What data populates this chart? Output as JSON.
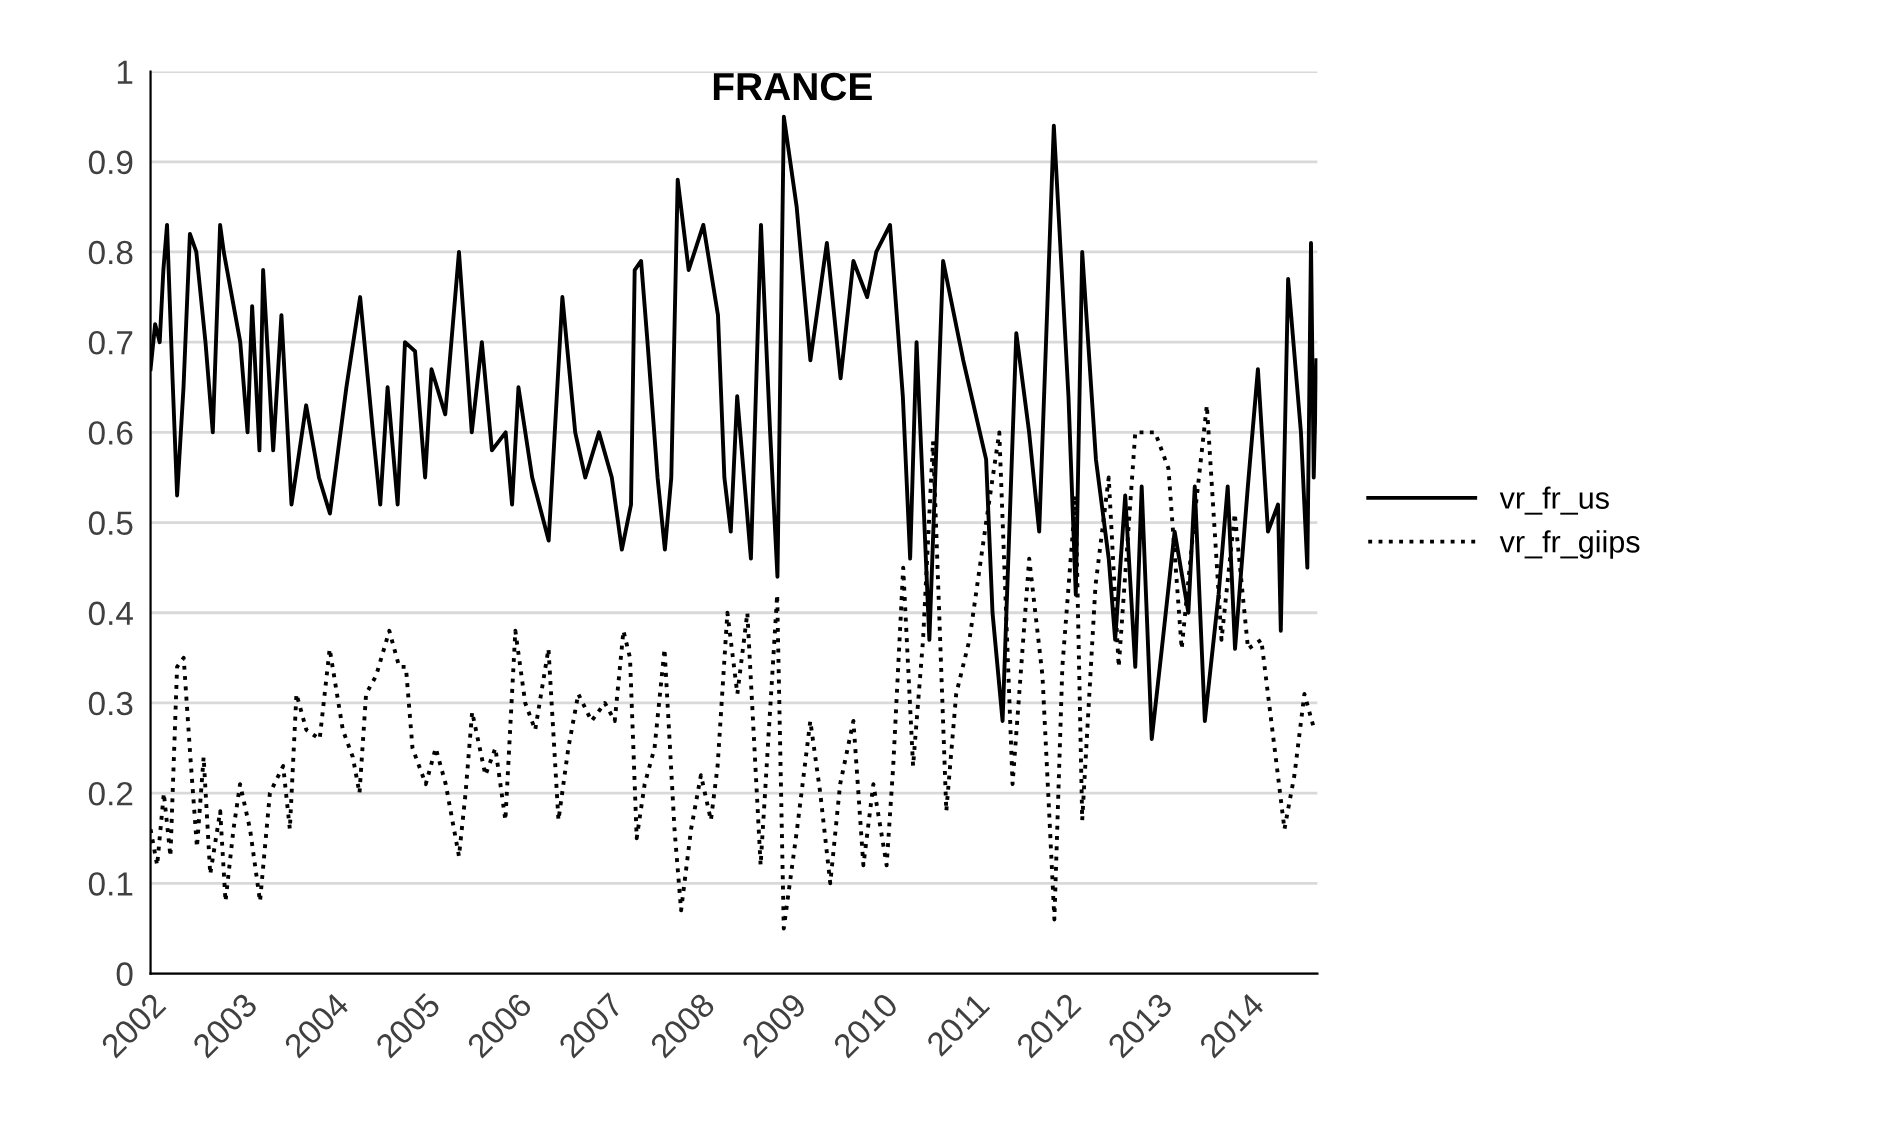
{
  "chart_data": {
    "type": "line",
    "title": "FRANCE",
    "xlim": [
      2002,
      2014.75
    ],
    "xticks": [
      2002,
      2003,
      2004,
      2005,
      2006,
      2007,
      2008,
      2009,
      2010,
      2011,
      2012,
      2013,
      2014
    ],
    "ylim": [
      0,
      1
    ],
    "yticks": [
      0,
      0.1,
      0.2,
      0.3,
      0.4,
      0.5,
      0.6,
      0.7,
      0.8,
      0.9,
      1
    ],
    "grid": "y",
    "legend": "right",
    "marker": "none",
    "series": [
      {
        "name": "vr_fr_us",
        "color": "#000000",
        "line_style": "solid",
        "x": [
          2002.0,
          2002.05,
          2002.1,
          2002.14,
          2002.18,
          2002.24,
          2002.29,
          2002.36,
          2002.43,
          2002.5,
          2002.6,
          2002.68,
          2002.76,
          2002.8,
          2002.98,
          2003.06,
          2003.11,
          2003.19,
          2003.23,
          2003.34,
          2003.43,
          2003.54,
          2003.7,
          2003.84,
          2003.96,
          2004.14,
          2004.29,
          2004.43,
          2004.51,
          2004.59,
          2004.7,
          2004.78,
          2004.89,
          2005.0,
          2005.07,
          2005.22,
          2005.37,
          2005.51,
          2005.62,
          2005.73,
          2005.88,
          2005.95,
          2006.02,
          2006.17,
          2006.35,
          2006.5,
          2006.64,
          2006.75,
          2006.9,
          2007.04,
          2007.15,
          2007.25,
          2007.29,
          2007.36,
          2007.43,
          2007.54,
          2007.62,
          2007.69,
          2007.76,
          2007.88,
          2008.04,
          2008.2,
          2008.27,
          2008.34,
          2008.41,
          2008.56,
          2008.67,
          2008.77,
          2008.85,
          2008.92,
          2009.06,
          2009.21,
          2009.39,
          2009.54,
          2009.68,
          2009.83,
          2009.93,
          2010.08,
          2010.22,
          2010.3,
          2010.37,
          2010.51,
          2010.66,
          2010.88,
          2011.13,
          2011.2,
          2011.31,
          2011.46,
          2011.6,
          2011.71,
          2011.87,
          2012.03,
          2012.11,
          2012.18,
          2012.33,
          2012.47,
          2012.54,
          2012.65,
          2012.76,
          2012.83,
          2012.94,
          2013.05,
          2013.19,
          2013.34,
          2013.41,
          2013.52,
          2013.67,
          2013.77,
          2013.85,
          2013.99,
          2014.1,
          2014.21,
          2014.32,
          2014.35,
          2014.43,
          2014.57,
          2014.64,
          2014.68,
          2014.71,
          2014.74
        ],
        "values": [
          0.67,
          0.72,
          0.7,
          0.78,
          0.83,
          0.66,
          0.53,
          0.65,
          0.82,
          0.8,
          0.7,
          0.6,
          0.83,
          0.8,
          0.7,
          0.6,
          0.74,
          0.58,
          0.78,
          0.58,
          0.73,
          0.52,
          0.63,
          0.55,
          0.51,
          0.65,
          0.75,
          0.6,
          0.52,
          0.65,
          0.52,
          0.7,
          0.69,
          0.55,
          0.67,
          0.62,
          0.8,
          0.6,
          0.7,
          0.58,
          0.6,
          0.52,
          0.65,
          0.55,
          0.48,
          0.75,
          0.6,
          0.55,
          0.6,
          0.55,
          0.47,
          0.52,
          0.78,
          0.79,
          0.7,
          0.55,
          0.47,
          0.55,
          0.88,
          0.78,
          0.83,
          0.73,
          0.55,
          0.49,
          0.64,
          0.46,
          0.83,
          0.6,
          0.44,
          0.95,
          0.85,
          0.68,
          0.81,
          0.66,
          0.79,
          0.75,
          0.8,
          0.83,
          0.64,
          0.46,
          0.7,
          0.37,
          0.79,
          0.68,
          0.57,
          0.4,
          0.28,
          0.71,
          0.6,
          0.49,
          0.94,
          0.64,
          0.42,
          0.8,
          0.57,
          0.46,
          0.37,
          0.53,
          0.34,
          0.54,
          0.26,
          0.36,
          0.49,
          0.4,
          0.54,
          0.28,
          0.42,
          0.54,
          0.36,
          0.54,
          0.67,
          0.49,
          0.52,
          0.38,
          0.77,
          0.6,
          0.45,
          0.81,
          0.55,
          0.68
        ]
      },
      {
        "name": "vr_fr_giips",
        "color": "#000000",
        "line_style": "dotted",
        "x": [
          2002.0,
          2002.072,
          2002.145,
          2002.217,
          2002.29,
          2002.362,
          2002.435,
          2002.507,
          2002.58,
          2002.652,
          2002.761,
          2002.819,
          2002.906,
          2002.978,
          2003.087,
          2003.196,
          2003.304,
          2003.449,
          2003.522,
          2003.594,
          2003.703,
          2003.848,
          2003.957,
          2004.101,
          2004.21,
          2004.283,
          2004.355,
          2004.464,
          2004.609,
          2004.717,
          2004.79,
          2004.862,
          2005.007,
          2005.116,
          2005.225,
          2005.37,
          2005.442,
          2005.514,
          2005.659,
          2005.768,
          2005.877,
          2005.986,
          2006.094,
          2006.203,
          2006.348,
          2006.457,
          2006.565,
          2006.674,
          2006.819,
          2006.964,
          2007.072,
          2007.167,
          2007.239,
          2007.312,
          2007.399,
          2007.507,
          2007.616,
          2007.725,
          2007.797,
          2007.906,
          2008.014,
          2008.123,
          2008.196,
          2008.303,
          2008.412,
          2008.521,
          2008.666,
          2008.847,
          2008.919,
          2009.064,
          2009.209,
          2009.318,
          2009.427,
          2009.535,
          2009.68,
          2009.789,
          2009.898,
          2010.043,
          2010.115,
          2010.224,
          2010.332,
          2010.441,
          2010.55,
          2010.695,
          2010.803,
          2010.948,
          2011.13,
          2011.274,
          2011.419,
          2011.601,
          2011.746,
          2011.876,
          2011.963,
          2012.108,
          2012.18,
          2012.325,
          2012.47,
          2012.579,
          2012.76,
          2012.977,
          2013.122,
          2013.267,
          2013.412,
          2013.542,
          2013.702,
          2013.847,
          2013.992,
          2014.137,
          2014.282,
          2014.39,
          2014.499,
          2014.608,
          2014.717
        ],
        "values": [
          0.16,
          0.12,
          0.2,
          0.13,
          0.34,
          0.35,
          0.24,
          0.14,
          0.24,
          0.11,
          0.18,
          0.08,
          0.16,
          0.21,
          0.16,
          0.08,
          0.2,
          0.23,
          0.16,
          0.31,
          0.27,
          0.26,
          0.36,
          0.27,
          0.24,
          0.2,
          0.31,
          0.33,
          0.38,
          0.34,
          0.34,
          0.25,
          0.21,
          0.25,
          0.21,
          0.13,
          0.2,
          0.29,
          0.22,
          0.25,
          0.17,
          0.38,
          0.3,
          0.27,
          0.36,
          0.17,
          0.25,
          0.31,
          0.28,
          0.3,
          0.28,
          0.38,
          0.35,
          0.15,
          0.21,
          0.25,
          0.36,
          0.16,
          0.07,
          0.16,
          0.22,
          0.17,
          0.23,
          0.4,
          0.31,
          0.4,
          0.12,
          0.42,
          0.05,
          0.16,
          0.28,
          0.2,
          0.1,
          0.21,
          0.28,
          0.12,
          0.21,
          0.12,
          0.23,
          0.45,
          0.23,
          0.37,
          0.59,
          0.18,
          0.31,
          0.37,
          0.5,
          0.6,
          0.21,
          0.46,
          0.33,
          0.06,
          0.34,
          0.53,
          0.17,
          0.43,
          0.55,
          0.34,
          0.6,
          0.6,
          0.56,
          0.36,
          0.51,
          0.63,
          0.37,
          0.51,
          0.36,
          0.37,
          0.25,
          0.16,
          0.22,
          0.31,
          0.27
        ]
      }
    ]
  }
}
